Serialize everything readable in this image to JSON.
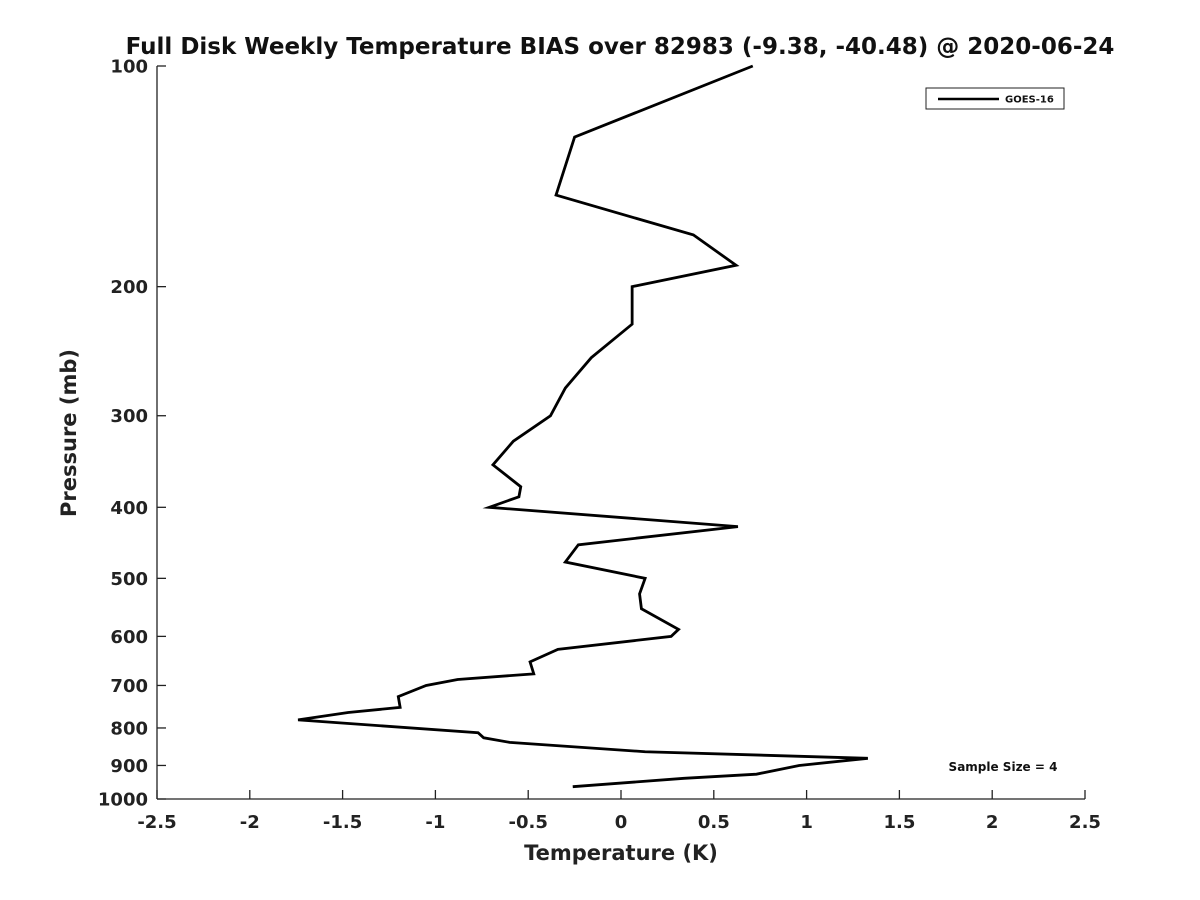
{
  "chart_data": {
    "type": "line",
    "title": "Full Disk Weekly Temperature BIAS over 82983 (-9.38, -40.48) @ 2020-06-24",
    "xlabel": "Temperature (K)",
    "ylabel": "Pressure (mb)",
    "xlim": [
      -2.5,
      2.5
    ],
    "ylim": [
      100,
      1000
    ],
    "y_scale": "log",
    "y_reversed": true,
    "grid": false,
    "legend_position": "top-right",
    "x_ticks": [
      -2.5,
      -2,
      -1.5,
      -1,
      -0.5,
      0,
      0.5,
      1,
      1.5,
      2,
      2.5
    ],
    "x_tick_labels": [
      "-2.5",
      "-2",
      "-1.5",
      "-1",
      "-0.5",
      "0",
      "0.5",
      "1",
      "1.5",
      "2",
      "2.5"
    ],
    "y_ticks": [
      100,
      200,
      300,
      400,
      500,
      600,
      700,
      800,
      900,
      1000
    ],
    "y_tick_labels": [
      "100",
      "200",
      "300",
      "400",
      "500",
      "600",
      "700",
      "800",
      "900",
      "1000"
    ],
    "series": [
      {
        "name": "GOES-16",
        "color": "#000000",
        "points": [
          {
            "t": 0.71,
            "p": 100
          },
          {
            "t": -0.25,
            "p": 125
          },
          {
            "t": -0.35,
            "p": 150
          },
          {
            "t": 0.39,
            "p": 170
          },
          {
            "t": 0.62,
            "p": 187
          },
          {
            "t": 0.06,
            "p": 200
          },
          {
            "t": 0.06,
            "p": 225
          },
          {
            "t": -0.16,
            "p": 250
          },
          {
            "t": -0.3,
            "p": 275
          },
          {
            "t": -0.38,
            "p": 300
          },
          {
            "t": -0.58,
            "p": 325
          },
          {
            "t": -0.69,
            "p": 350
          },
          {
            "t": -0.54,
            "p": 375
          },
          {
            "t": -0.55,
            "p": 387
          },
          {
            "t": -0.71,
            "p": 400
          },
          {
            "t": 0.63,
            "p": 425
          },
          {
            "t": -0.23,
            "p": 450
          },
          {
            "t": -0.3,
            "p": 475
          },
          {
            "t": 0.13,
            "p": 500
          },
          {
            "t": 0.1,
            "p": 525
          },
          {
            "t": 0.11,
            "p": 550
          },
          {
            "t": 0.31,
            "p": 587
          },
          {
            "t": 0.27,
            "p": 600
          },
          {
            "t": -0.34,
            "p": 625
          },
          {
            "t": -0.49,
            "p": 650
          },
          {
            "t": -0.47,
            "p": 675
          },
          {
            "t": -0.88,
            "p": 687
          },
          {
            "t": -1.05,
            "p": 700
          },
          {
            "t": -1.2,
            "p": 725
          },
          {
            "t": -1.19,
            "p": 750
          },
          {
            "t": -1.47,
            "p": 762
          },
          {
            "t": -1.74,
            "p": 780
          },
          {
            "t": -0.77,
            "p": 812
          },
          {
            "t": -0.74,
            "p": 825
          },
          {
            "t": -0.6,
            "p": 837
          },
          {
            "t": 0.13,
            "p": 862
          },
          {
            "t": 1.33,
            "p": 880
          },
          {
            "t": 0.96,
            "p": 900
          },
          {
            "t": 0.73,
            "p": 925
          },
          {
            "t": 0.34,
            "p": 937
          },
          {
            "t": -0.26,
            "p": 962
          }
        ]
      }
    ],
    "annotations": [
      "Sample Size = 4"
    ]
  }
}
